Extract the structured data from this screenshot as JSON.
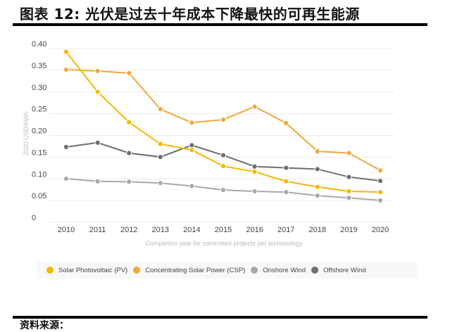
{
  "title": "图表 12: 光伏是过去十年成本下降最快的可再生能源",
  "footer": "资料来源：",
  "chart_data": {
    "type": "line",
    "title": "",
    "xlabel": "Completion year for committed projects per techonology",
    "ylabel": "2020 USD/kWh",
    "x": [
      "2010",
      "2011",
      "2012",
      "2013",
      "2014",
      "2015",
      "2016",
      "2017",
      "2018",
      "2019",
      "2020"
    ],
    "ylim": [
      0,
      0.4
    ],
    "yticks": [
      "0",
      "0.05",
      "0.10",
      "0.15",
      "0.20",
      "0.25",
      "0.30",
      "0.35",
      "0.40"
    ],
    "grid": true,
    "legend": "bottom",
    "series": [
      {
        "name": "Solar Photovoltaic (PV)",
        "color": "#f5b800",
        "values": [
          0.381,
          0.289,
          0.219,
          0.169,
          0.155,
          0.118,
          0.105,
          0.083,
          0.07,
          0.06,
          0.058
        ]
      },
      {
        "name": "Concentrating Solar Power (CSP)",
        "color": "#f0a93a",
        "values": [
          0.34,
          0.337,
          0.332,
          0.249,
          0.218,
          0.225,
          0.255,
          0.217,
          0.152,
          0.148,
          0.108
        ]
      },
      {
        "name": "Onshore Wind",
        "color": "#a8a8a8",
        "values": [
          0.089,
          0.083,
          0.082,
          0.079,
          0.072,
          0.063,
          0.06,
          0.058,
          0.05,
          0.045,
          0.039
        ]
      },
      {
        "name": "Offshore Wind",
        "color": "#6e6e6e",
        "values": [
          0.162,
          0.172,
          0.148,
          0.139,
          0.166,
          0.143,
          0.117,
          0.114,
          0.111,
          0.093,
          0.084
        ]
      }
    ]
  }
}
